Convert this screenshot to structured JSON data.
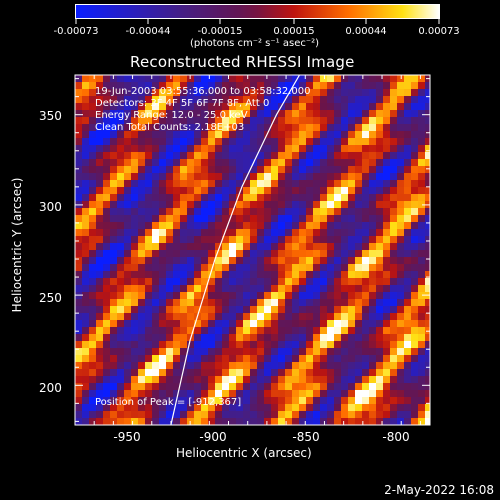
{
  "colorbar": {
    "ticks": [
      "-0.00073",
      "-0.00044",
      "-0.00015",
      "0.00015",
      "0.00044",
      "0.00073"
    ],
    "unit_label": "(photons cm⁻² s⁻¹ asec⁻²)"
  },
  "annotations": {
    "time_range": "19-Jun-2003 03:55:36.000 to 03:58:32.000",
    "detectors": "Detectors: 3F 4F 5F 6F 7F 8F, Att 0",
    "energy_range": "Energy Range: 12.0 - 25.0 keV",
    "clean_counts": "Clean     Total Counts: 2.18E+03",
    "peak_position": "Position of Peak = [-912,367]"
  },
  "footer": {
    "timestamp": "2-May-2022 16:08"
  },
  "colors": {
    "background": "#000000",
    "text": "#ffffff",
    "limb": "#ffffff"
  },
  "chart_data": {
    "type": "heatmap",
    "title": "Reconstructed RHESSI Image",
    "xlabel": "Heliocentric X (arcsec)",
    "ylabel": "Heliocentric Y (arcsec)",
    "xlim": [
      -975,
      -790
    ],
    "ylim": [
      178,
      372
    ],
    "xticks": [
      -950,
      -900,
      -850,
      -800
    ],
    "yticks": [
      200,
      250,
      300,
      350
    ],
    "colormap": "blue-purple-red-yellow-white",
    "color_range": [
      -0.00073,
      0.00073
    ],
    "pattern": "diagonal stripe modulation, stripes running lower-left to upper-right",
    "solar_limb": [
      [
        -925,
        178
      ],
      [
        -915,
        225
      ],
      [
        -902,
        270
      ],
      [
        -888,
        310
      ],
      [
        -870,
        350
      ],
      [
        -858,
        372
      ]
    ]
  }
}
